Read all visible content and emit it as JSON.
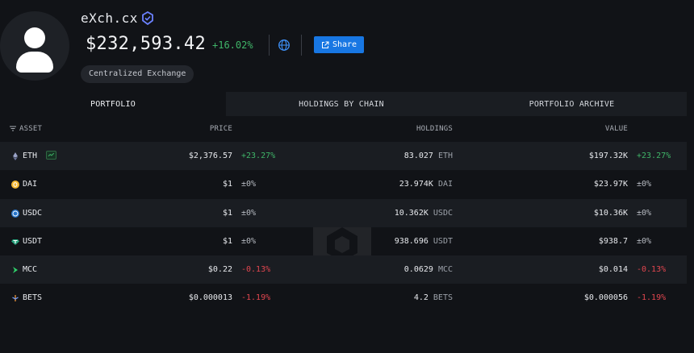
{
  "entity": {
    "name": "eXch.cx",
    "balance": "$232,593.42",
    "balance_change": "+16.02%",
    "tag": "Centralized Exchange",
    "share_label": "Share"
  },
  "tabs": [
    {
      "label": "PORTFOLIO",
      "active": true
    },
    {
      "label": "HOLDINGS BY CHAIN",
      "active": false
    },
    {
      "label": "PORTFOLIO ARCHIVE",
      "active": false
    }
  ],
  "table": {
    "headers": {
      "asset": "ASSET",
      "price": "PRICE",
      "holdings": "HOLDINGS",
      "value": "VALUE"
    },
    "rows": [
      {
        "asset": "ETH",
        "icon": "ethereum-icon",
        "price": "$2,376.57",
        "price_change": "+23.27%",
        "holdings": "83.027",
        "symbol": "ETH",
        "value": "$197.32K",
        "value_change": "+23.27%"
      },
      {
        "asset": "DAI",
        "icon": "dai-icon",
        "price": "$1",
        "price_change": "±0%",
        "holdings": "23.974K",
        "symbol": "DAI",
        "value": "$23.97K",
        "value_change": "±0%"
      },
      {
        "asset": "USDC",
        "icon": "usdc-icon",
        "price": "$1",
        "price_change": "±0%",
        "holdings": "10.362K",
        "symbol": "USDC",
        "value": "$10.36K",
        "value_change": "±0%"
      },
      {
        "asset": "USDT",
        "icon": "usdt-icon",
        "price": "$1",
        "price_change": "±0%",
        "holdings": "938.696",
        "symbol": "USDT",
        "value": "$938.7",
        "value_change": "±0%"
      },
      {
        "asset": "MCC",
        "icon": "mcc-icon",
        "price": "$0.22",
        "price_change": "-0.13%",
        "holdings": "0.0629",
        "symbol": "MCC",
        "value": "$0.014",
        "value_change": "-0.13%"
      },
      {
        "asset": "BETS",
        "icon": "bets-icon",
        "price": "$0.000013",
        "price_change": "-1.19%",
        "holdings": "4.2",
        "symbol": "BETS",
        "value": "$0.000056",
        "value_change": "-1.19%"
      }
    ]
  },
  "colors": {
    "accent": "#1877e3",
    "positive": "#3fb468",
    "negative": "#e2464f"
  }
}
